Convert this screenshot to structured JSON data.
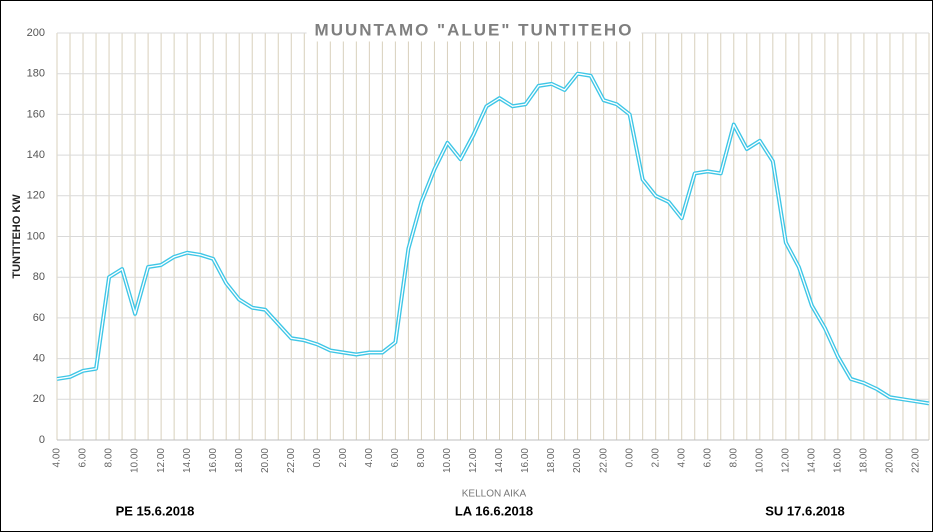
{
  "chart_data": {
    "type": "line",
    "title": "MUUNTAMO \"ALUE\" TUNTITEHO",
    "y_label": "TUNTITEHO KW",
    "x_label": "KELLON AIKA",
    "day_labels": [
      "PE 15.6.2018",
      "LA 16.6.2018",
      "SU 17.6.2018"
    ],
    "categories": [
      "4.00",
      null,
      "6.00",
      null,
      "8.00",
      null,
      "10.00",
      null,
      "12.00",
      null,
      "14.00",
      null,
      "16.00",
      null,
      "18.00",
      null,
      "20.00",
      null,
      "22.00",
      null,
      "0.00",
      null,
      "2.00",
      null,
      "4.00",
      null,
      "6.00",
      null,
      "8.00",
      null,
      "10.00",
      null,
      "12.00",
      null,
      "14.00",
      null,
      "16.00",
      null,
      "18.00",
      null,
      "20.00",
      null,
      "22.00",
      null,
      "0.00",
      null,
      "2.00",
      null,
      "4.00",
      null,
      "6.00",
      null,
      "8.00",
      null,
      "10.00",
      null,
      "12.00",
      null,
      "14.00",
      null,
      "16.00",
      null,
      "18.00",
      null,
      "20.00",
      null,
      "22.00",
      null
    ],
    "series": [
      {
        "name": "TUNTITEHO KW",
        "color": "#3ec6e6",
        "values": [
          30,
          31,
          34,
          35,
          80,
          84,
          62,
          85,
          86,
          90,
          92,
          91,
          89,
          77,
          69,
          65,
          64,
          57,
          50,
          49,
          47,
          44,
          43,
          42,
          43,
          43,
          48,
          94,
          117,
          133,
          146,
          138,
          150,
          164,
          168,
          164,
          165,
          174,
          175,
          172,
          180,
          179,
          167,
          165,
          160,
          128,
          120,
          117,
          109,
          131,
          132,
          131,
          155,
          143,
          147,
          137,
          97,
          85,
          66,
          55,
          41,
          30,
          28,
          25,
          21,
          20,
          19,
          18
        ]
      }
    ],
    "ylim": [
      0,
      200
    ],
    "yticks": [
      0,
      20,
      40,
      60,
      80,
      100,
      120,
      140,
      160,
      180,
      200
    ],
    "grid": true
  }
}
